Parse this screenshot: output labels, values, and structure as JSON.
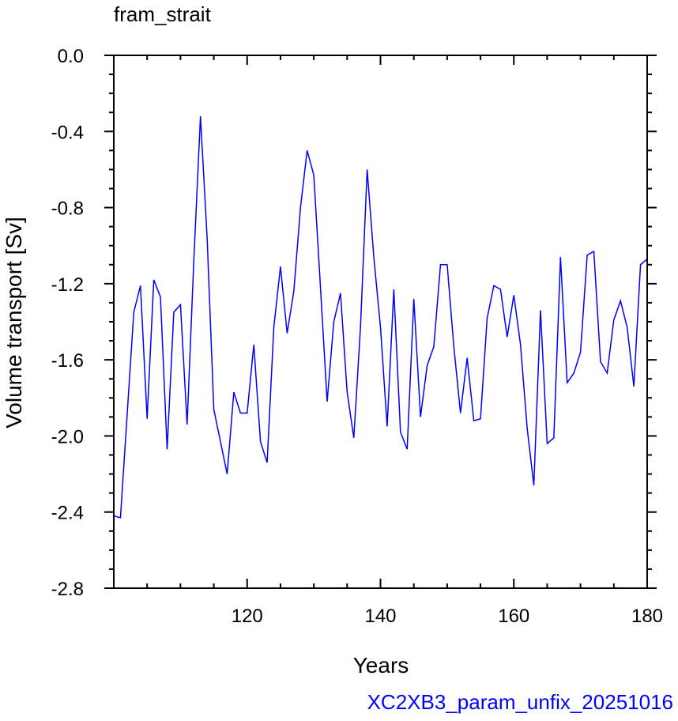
{
  "chart_data": {
    "type": "line",
    "title": "fram_strait",
    "xlabel": "Years",
    "ylabel": "Volume transport [Sv]",
    "xlim": [
      100,
      180
    ],
    "ylim": [
      -2.8,
      0.0
    ],
    "x_ticks": [
      120,
      140,
      160,
      180
    ],
    "x_tick_labels": [
      "120",
      "140",
      "160",
      "180"
    ],
    "y_ticks": [
      0.0,
      -0.4,
      -0.8,
      -1.2,
      -1.6,
      -2.0,
      -2.4,
      -2.8
    ],
    "y_tick_labels": [
      "0.0",
      "-0.4",
      "-0.8",
      "-1.2",
      "-1.6",
      "-2.0",
      "-2.4",
      "-2.8"
    ],
    "grid": false,
    "series": [
      {
        "color": "#0000ff",
        "x": [
          100,
          101,
          102,
          103,
          104,
          105,
          106,
          107,
          108,
          109,
          110,
          111,
          112,
          113,
          114,
          115,
          116,
          117,
          118,
          119,
          120,
          121,
          122,
          123,
          124,
          125,
          126,
          127,
          128,
          129,
          130,
          131,
          132,
          133,
          134,
          135,
          136,
          137,
          138,
          139,
          140,
          141,
          142,
          143,
          144,
          145,
          146,
          147,
          148,
          149,
          150,
          151,
          152,
          153,
          154,
          155,
          156,
          157,
          158,
          159,
          160,
          161,
          162,
          163,
          164,
          165,
          166,
          167,
          168,
          169,
          170,
          171,
          172,
          173,
          174,
          175,
          176,
          177,
          178,
          179,
          180
        ],
        "y": [
          -2.42,
          -2.43,
          -1.89,
          -1.35,
          -1.21,
          -1.91,
          -1.18,
          -1.27,
          -2.07,
          -1.35,
          -1.31,
          -1.94,
          -1.08,
          -0.32,
          -0.96,
          -1.86,
          -2.03,
          -2.2,
          -1.77,
          -1.88,
          -1.88,
          -1.52,
          -2.03,
          -2.14,
          -1.43,
          -1.11,
          -1.46,
          -1.24,
          -0.8,
          -0.5,
          -0.63,
          -1.22,
          -1.82,
          -1.4,
          -1.25,
          -1.77,
          -2.01,
          -1.43,
          -0.6,
          -1.06,
          -1.43,
          -1.95,
          -1.23,
          -1.98,
          -2.07,
          -1.28,
          -1.9,
          -1.63,
          -1.53,
          -1.1,
          -1.1,
          -1.53,
          -1.88,
          -1.59,
          -1.92,
          -1.91,
          -1.38,
          -1.21,
          -1.23,
          -1.48,
          -1.26,
          -1.52,
          -1.96,
          -2.26,
          -1.34,
          -2.04,
          -2.01,
          -1.06,
          -1.72,
          -1.67,
          -1.56,
          -1.05,
          -1.03,
          -1.61,
          -1.67,
          -1.39,
          -1.29,
          -1.43,
          -1.74,
          -1.1,
          -1.07
        ]
      }
    ]
  },
  "footer_label": "XC2XB3_param_unfix_20251016",
  "colors": {
    "line": "#0000ff",
    "footer": "#0000ff",
    "axes": "#000000"
  }
}
